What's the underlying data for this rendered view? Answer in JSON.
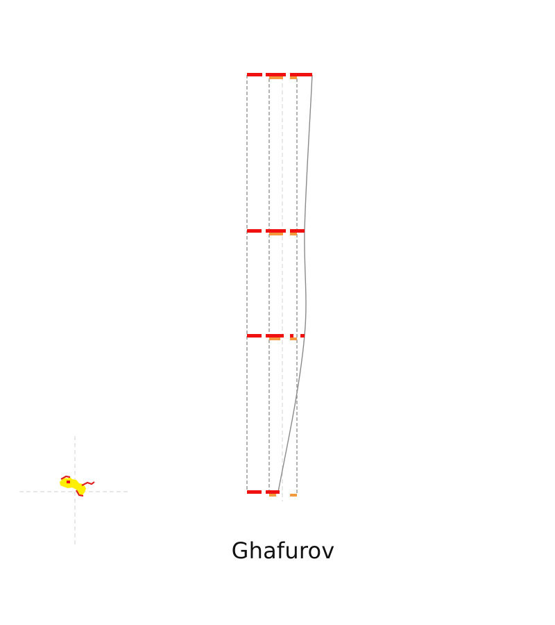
{
  "map": {
    "place_name": "Ghafurov",
    "colors": {
      "background": "#ffffff",
      "frame_line": "#8a8a8a",
      "crosshair": "#d9d9d9",
      "boundary_red": "#f01010",
      "boundary_orange": "#f59a3c",
      "inset_yellow": "#ffee00",
      "inset_red": "#e02020"
    },
    "icons": {
      "locator": "crosshair-icon"
    }
  }
}
